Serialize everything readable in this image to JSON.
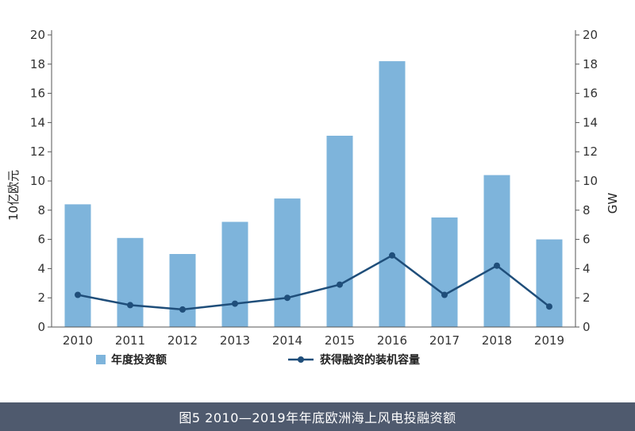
{
  "chart_data": {
    "type": "bar",
    "categories": [
      "2010",
      "2011",
      "2012",
      "2013",
      "2014",
      "2015",
      "2016",
      "2017",
      "2018",
      "2019"
    ],
    "series": [
      {
        "name": "年度投资额",
        "type": "bar",
        "axis": "left",
        "color": "#7eb4db",
        "values": [
          8.4,
          6.1,
          5.0,
          7.2,
          8.8,
          13.1,
          18.2,
          7.5,
          10.4,
          6.0
        ]
      },
      {
        "name": "获得融资的装机容量",
        "type": "line",
        "axis": "right",
        "color": "#1f4e7a",
        "values": [
          2.2,
          1.5,
          1.2,
          1.6,
          2.0,
          2.9,
          4.9,
          2.2,
          4.2,
          1.4
        ]
      }
    ],
    "ylabel": "10亿欧元",
    "y2label": "GW",
    "ylim": [
      0,
      20
    ],
    "y2lim": [
      0,
      20
    ],
    "yticks": [
      0,
      2,
      4,
      6,
      8,
      10,
      12,
      14,
      16,
      18,
      20
    ],
    "y2ticks": [
      0,
      2,
      4,
      6,
      8,
      10,
      12,
      14,
      16,
      18,
      20
    ],
    "legend_position": "bottom",
    "grid": false
  },
  "caption": "图5 2010—2019年年底欧洲海上风电投融资额"
}
